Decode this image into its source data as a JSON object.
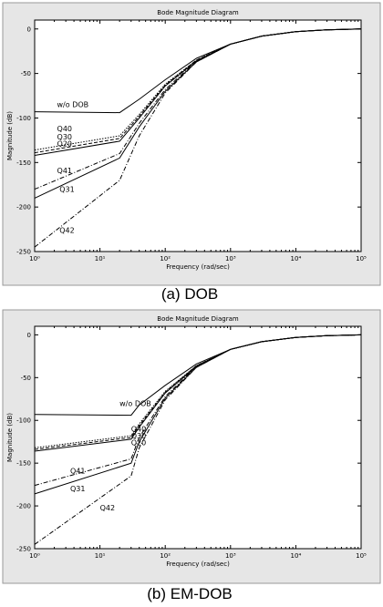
{
  "chart_data": [
    {
      "type": "line",
      "title": "Bode Magnitude Diagram",
      "xlabel": "Frequency (rad/sec)",
      "ylabel": "Magnitude (dB)",
      "caption": "(a)  DOB",
      "x_scale": "log",
      "xlim": [
        1,
        100000
      ],
      "ylim": [
        -250,
        10
      ],
      "x_ticks": [
        1,
        10,
        100,
        1000,
        10000,
        100000
      ],
      "x_tick_labels": [
        "10⁰",
        "10¹",
        "10²",
        "10³",
        "10⁴",
        "10⁵"
      ],
      "y_ticks": [
        0,
        -50,
        -100,
        -150,
        -200,
        -250
      ],
      "y_tick_labels": [
        "0",
        "-50",
        "-100",
        "-150",
        "-200",
        "-250"
      ],
      "grid": false,
      "series": [
        {
          "name": "w/o DOB",
          "style": "solid",
          "label_at": [
            2.2,
            -88
          ],
          "x": [
            1,
            20,
            40,
            100,
            300,
            1000,
            3000,
            10000,
            30000,
            100000
          ],
          "y": [
            -93,
            -94,
            -79,
            -57,
            -33,
            -17,
            -8,
            -3,
            -1,
            0
          ]
        },
        {
          "name": "Q40",
          "style": "dotted",
          "label_at": [
            2.2,
            -115
          ],
          "x": [
            1,
            20,
            40,
            100,
            300,
            1000,
            3000,
            10000,
            30000,
            100000
          ],
          "y": [
            -136,
            -120,
            -96,
            -62,
            -35,
            -17,
            -8,
            -3,
            -1,
            0
          ]
        },
        {
          "name": "Q30",
          "style": "dashed",
          "label_at": [
            2.2,
            -124
          ],
          "x": [
            1,
            20,
            40,
            100,
            300,
            1000,
            3000,
            10000,
            30000,
            100000
          ],
          "y": [
            -139,
            -123,
            -98,
            -63,
            -35,
            -17,
            -8,
            -3,
            -1,
            0
          ]
        },
        {
          "name": "Q20",
          "style": "solid",
          "label_at": [
            2.2,
            -132
          ],
          "x": [
            1,
            20,
            40,
            100,
            300,
            1000,
            3000,
            10000,
            30000,
            100000
          ],
          "y": [
            -142,
            -126,
            -100,
            -64,
            -36,
            -17,
            -8,
            -3,
            -1,
            0
          ]
        },
        {
          "name": "Q41",
          "style": "dashdot",
          "label_at": [
            2.2,
            -162
          ],
          "x": [
            1,
            20,
            40,
            100,
            300,
            1000,
            3000,
            10000,
            30000,
            100000
          ],
          "y": [
            -180,
            -140,
            -106,
            -68,
            -36,
            -17,
            -8,
            -3,
            -1,
            0
          ]
        },
        {
          "name": "Q31",
          "style": "solid",
          "label_at": [
            2.4,
            -183
          ],
          "x": [
            1,
            20,
            40,
            100,
            300,
            1000,
            3000,
            10000,
            30000,
            100000
          ],
          "y": [
            -190,
            -145,
            -110,
            -70,
            -37,
            -17,
            -8,
            -3,
            -1,
            0
          ]
        },
        {
          "name": "Q42",
          "style": "dashdot",
          "label_at": [
            2.4,
            -229
          ],
          "x": [
            1,
            20,
            40,
            100,
            300,
            1000,
            3000,
            10000,
            30000,
            100000
          ],
          "y": [
            -245,
            -170,
            -120,
            -72,
            -37,
            -17,
            -8,
            -3,
            -1,
            0
          ]
        }
      ]
    },
    {
      "type": "line",
      "title": "Bode Magnitude Diagram",
      "xlabel": "Frequency (rad/sec)",
      "ylabel": "Magnitude (dB)",
      "caption": "(b)  EM-DOB",
      "x_scale": "log",
      "xlim": [
        1,
        100000
      ],
      "ylim": [
        -250,
        10
      ],
      "x_ticks": [
        1,
        10,
        100,
        1000,
        10000,
        100000
      ],
      "x_tick_labels": [
        "10⁰",
        "10¹",
        "10²",
        "10³",
        "10⁴",
        "10⁵"
      ],
      "y_ticks": [
        0,
        -50,
        -100,
        -150,
        -200,
        -250
      ],
      "y_tick_labels": [
        "0",
        "-50",
        "-100",
        "-150",
        "-200",
        "-250"
      ],
      "grid": false,
      "series": [
        {
          "name": "w/o DOB",
          "style": "solid",
          "label_at": [
            20,
            -83
          ],
          "x": [
            1,
            30,
            40,
            100,
            300,
            1000,
            3000,
            10000,
            30000,
            100000
          ],
          "y": [
            -93,
            -94,
            -82,
            -59,
            -34,
            -17,
            -8,
            -3,
            -1,
            0
          ]
        },
        {
          "name": "Q40",
          "style": "dotted",
          "label_at": [
            30,
            -113
          ],
          "x": [
            1,
            30,
            40,
            100,
            300,
            1000,
            3000,
            10000,
            30000,
            100000
          ],
          "y": [
            -132,
            -118,
            -104,
            -66,
            -36,
            -17,
            -8,
            -3,
            -1,
            0
          ]
        },
        {
          "name": "Q30",
          "style": "dashed",
          "label_at": [
            30,
            -121
          ],
          "x": [
            1,
            30,
            40,
            100,
            300,
            1000,
            3000,
            10000,
            30000,
            100000
          ],
          "y": [
            -134,
            -120,
            -106,
            -67,
            -36,
            -17,
            -8,
            -3,
            -1,
            0
          ]
        },
        {
          "name": "Q20",
          "style": "solid",
          "label_at": [
            30,
            -129
          ],
          "x": [
            1,
            30,
            40,
            100,
            300,
            1000,
            3000,
            10000,
            30000,
            100000
          ],
          "y": [
            -136,
            -122,
            -108,
            -68,
            -37,
            -17,
            -8,
            -3,
            -1,
            0
          ]
        },
        {
          "name": "Q41",
          "style": "dashdot",
          "label_at": [
            3.5,
            -162
          ],
          "x": [
            1,
            30,
            40,
            100,
            300,
            1000,
            3000,
            10000,
            30000,
            100000
          ],
          "y": [
            -176,
            -145,
            -120,
            -72,
            -37,
            -17,
            -8,
            -3,
            -1,
            0
          ]
        },
        {
          "name": "Q31",
          "style": "solid",
          "label_at": [
            3.5,
            -183
          ],
          "x": [
            1,
            30,
            40,
            100,
            300,
            1000,
            3000,
            10000,
            30000,
            100000
          ],
          "y": [
            -186,
            -150,
            -125,
            -74,
            -38,
            -17,
            -8,
            -3,
            -1,
            0
          ]
        },
        {
          "name": "Q42",
          "style": "dashdot",
          "label_at": [
            10,
            -205
          ],
          "x": [
            1,
            30,
            40,
            100,
            300,
            1000,
            3000,
            10000,
            30000,
            100000
          ],
          "y": [
            -245,
            -165,
            -132,
            -76,
            -38,
            -17,
            -8,
            -3,
            -1,
            0
          ]
        }
      ]
    }
  ]
}
